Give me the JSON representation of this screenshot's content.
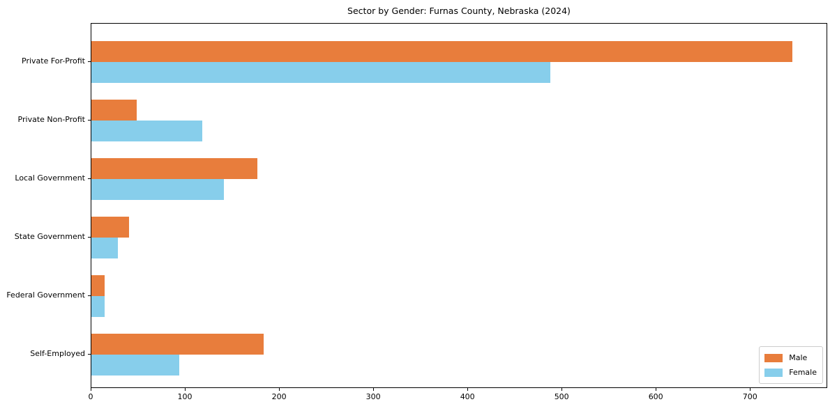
{
  "chart_data": {
    "type": "bar",
    "orientation": "horizontal",
    "title": "Sector by Gender: Furnas County, Nebraska (2024)",
    "categories": [
      "Private For-Profit",
      "Private Non-Profit",
      "Local Government",
      "State Government",
      "Federal Government",
      "Self-Employed"
    ],
    "series": [
      {
        "name": "Male",
        "color": "#e87d3c",
        "values": [
          744,
          48,
          176,
          40,
          14,
          183
        ]
      },
      {
        "name": "Female",
        "color": "#87ceeb",
        "values": [
          487,
          118,
          141,
          28,
          14,
          93
        ]
      }
    ],
    "xlabel": "",
    "ylabel": "",
    "xlim": [
      0,
      782
    ],
    "xticks": [
      0,
      100,
      200,
      300,
      400,
      500,
      600,
      700
    ],
    "grid": false,
    "legend": {
      "position": "lower right",
      "labels": [
        "Male",
        "Female"
      ]
    }
  },
  "colors": {
    "background": "#ffffff",
    "spine": "#000000",
    "text": "#000000",
    "legend_border": "#cccccc",
    "male": "#e87d3c",
    "female": "#87ceeb"
  }
}
